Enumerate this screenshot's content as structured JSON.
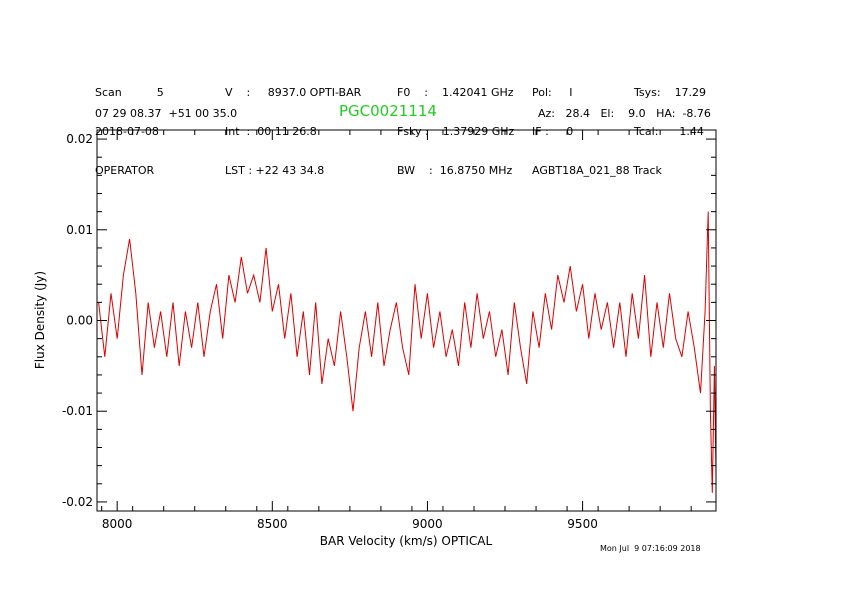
{
  "header": {
    "col1": [
      "Scan          5",
      "2018-07-08",
      "OPERATOR"
    ],
    "col2": [
      "V    :     8937.0 OPTI-BAR",
      "Int  :  00 11 26.8",
      "LST : +22 43 34.8"
    ],
    "col3": [
      "F0    :    1.42041 GHz",
      "Fsky :    1.37929 GHz",
      "BW    :  16.8750 MHz"
    ],
    "col4": [
      "Pol:     I",
      "IF :     0",
      "AGBT18A_021_88 Track"
    ],
    "col5": [
      "Tsys:    17.29",
      "Tcal:      1.44",
      ""
    ],
    "coords": "07 29 08.37  +51 00 35.0",
    "source": "PGC0021114",
    "pointing": "Az:   28.4   El:    9.0   HA:  -8.76"
  },
  "timestamp": "Mon Jul  9 07:16:09 2018",
  "colors": {
    "trace": "#dd0000",
    "source": "#22cc22",
    "axes": "#000000"
  },
  "chart_data": {
    "type": "line",
    "title": "",
    "xlabel": "BAR Velocity (km/s) OPTICAL",
    "ylabel": "Flux Density (Jy)",
    "xlim": [
      7935,
      9930
    ],
    "ylim": [
      -0.021,
      0.021
    ],
    "xticks": [
      8000,
      8500,
      9000,
      9500
    ],
    "xtick_labels": [
      "8000",
      "8500",
      "9000",
      "9500"
    ],
    "yticks": [
      -0.02,
      -0.01,
      0.0,
      0.01,
      0.02
    ],
    "ytick_labels": [
      "-0.02",
      "-0.01",
      "0.00",
      "0.01",
      "0.02"
    ],
    "grid": false,
    "series": [
      {
        "x": [
          7940,
          7960,
          7980,
          8000,
          8020,
          8040,
          8060,
          8080,
          8100,
          8120,
          8140,
          8160,
          8180,
          8200,
          8220,
          8240,
          8260,
          8280,
          8300,
          8320,
          8340,
          8360,
          8380,
          8400,
          8420,
          8440,
          8460,
          8480,
          8500,
          8520,
          8540,
          8560,
          8580,
          8600,
          8620,
          8640,
          8660,
          8680,
          8700,
          8720,
          8740,
          8760,
          8780,
          8800,
          8820,
          8840,
          8860,
          8880,
          8900,
          8920,
          8940,
          8960,
          8980,
          9000,
          9020,
          9040,
          9060,
          9080,
          9100,
          9120,
          9140,
          9160,
          9180,
          9200,
          9220,
          9240,
          9260,
          9280,
          9300,
          9320,
          9340,
          9360,
          9380,
          9400,
          9420,
          9440,
          9460,
          9480,
          9500,
          9520,
          9540,
          9560,
          9580,
          9600,
          9620,
          9640,
          9660,
          9680,
          9700,
          9720,
          9740,
          9760,
          9780,
          9800,
          9820,
          9840,
          9860,
          9880,
          9895,
          9905,
          9912,
          9918,
          9925,
          9930
        ],
        "y": [
          0.002,
          -0.004,
          0.003,
          -0.002,
          0.005,
          0.009,
          0.003,
          -0.006,
          0.002,
          -0.003,
          0.001,
          -0.004,
          0.002,
          -0.005,
          0.001,
          -0.003,
          0.002,
          -0.004,
          0.001,
          0.004,
          -0.002,
          0.005,
          0.002,
          0.007,
          0.003,
          0.005,
          0.002,
          0.008,
          0.001,
          0.004,
          -0.002,
          0.003,
          -0.004,
          0.001,
          -0.006,
          0.002,
          -0.007,
          -0.002,
          -0.005,
          0.001,
          -0.004,
          -0.01,
          -0.003,
          0.001,
          -0.004,
          0.002,
          -0.005,
          -0.001,
          0.002,
          -0.003,
          -0.006,
          0.004,
          -0.002,
          0.003,
          -0.003,
          0.001,
          -0.004,
          -0.001,
          -0.005,
          0.002,
          -0.003,
          0.003,
          -0.002,
          0.001,
          -0.004,
          -0.001,
          -0.006,
          0.002,
          -0.003,
          -0.007,
          0.001,
          -0.003,
          0.003,
          -0.001,
          0.005,
          0.002,
          0.006,
          0.001,
          0.004,
          -0.002,
          0.003,
          -0.001,
          0.002,
          -0.003,
          0.002,
          -0.004,
          0.003,
          -0.002,
          0.005,
          -0.004,
          0.002,
          -0.003,
          0.003,
          -0.002,
          -0.004,
          0.001,
          -0.003,
          -0.008,
          0.001,
          0.012,
          -0.01,
          -0.019,
          -0.005,
          -0.017
        ]
      }
    ]
  }
}
